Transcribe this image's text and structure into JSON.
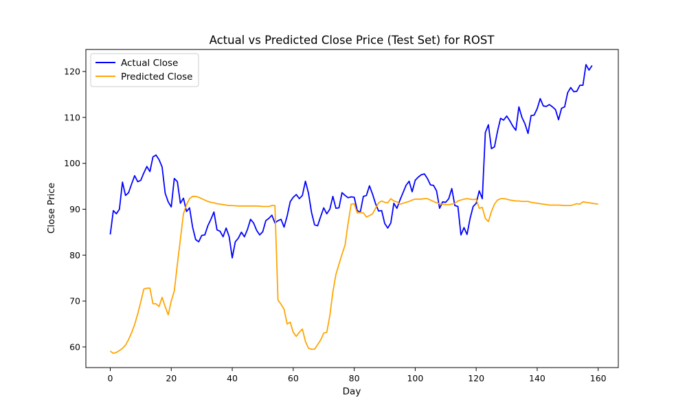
{
  "chart_data": {
    "type": "line",
    "title": "Actual vs Predicted Close Price (Test Set) for ROST",
    "xlabel": "Day",
    "ylabel": "Close Price",
    "xlim": [
      -8,
      166.6
    ],
    "ylim": [
      55.5,
      124.8
    ],
    "xticks": [
      0,
      20,
      40,
      60,
      80,
      100,
      120,
      140,
      160
    ],
    "yticks": [
      60,
      70,
      80,
      90,
      100,
      110,
      120
    ],
    "xtick_labels": [
      "0",
      "20",
      "40",
      "60",
      "80",
      "100",
      "120",
      "140",
      "160"
    ],
    "ytick_labels": [
      "60",
      "70",
      "80",
      "90",
      "100",
      "110",
      "120"
    ],
    "grid": false,
    "legend_position": "upper-left",
    "series": [
      {
        "name": "Actual Close",
        "color": "#0000ff",
        "points": [
          [
            0,
            84.5
          ],
          [
            1,
            89.7
          ],
          [
            2,
            89.0
          ],
          [
            3,
            90.0
          ],
          [
            4,
            95.9
          ],
          [
            5,
            93.0
          ],
          [
            6,
            93.6
          ],
          [
            7,
            95.5
          ],
          [
            8,
            97.3
          ],
          [
            9,
            96.0
          ],
          [
            10,
            96.3
          ],
          [
            11,
            97.9
          ],
          [
            12,
            99.3
          ],
          [
            13,
            98.2
          ],
          [
            14,
            101.4
          ],
          [
            15,
            101.8
          ],
          [
            16,
            100.8
          ],
          [
            17,
            99.2
          ],
          [
            18,
            93.5
          ],
          [
            19,
            91.6
          ],
          [
            20,
            90.5
          ],
          [
            21,
            96.7
          ],
          [
            22,
            96.0
          ],
          [
            23,
            91.3
          ],
          [
            24,
            92.4
          ],
          [
            25,
            89.5
          ],
          [
            26,
            90.3
          ],
          [
            27,
            86.1
          ],
          [
            28,
            83.4
          ],
          [
            29,
            82.9
          ],
          [
            30,
            84.3
          ],
          [
            31,
            84.4
          ],
          [
            32,
            86.4
          ],
          [
            33,
            87.8
          ],
          [
            34,
            89.4
          ],
          [
            35,
            85.5
          ],
          [
            36,
            85.2
          ],
          [
            37,
            84.0
          ],
          [
            38,
            85.9
          ],
          [
            39,
            84.0
          ],
          [
            40,
            79.4
          ],
          [
            41,
            82.9
          ],
          [
            42,
            83.7
          ],
          [
            43,
            85.0
          ],
          [
            44,
            84.0
          ],
          [
            45,
            85.6
          ],
          [
            46,
            87.8
          ],
          [
            47,
            87.0
          ],
          [
            48,
            85.4
          ],
          [
            49,
            84.4
          ],
          [
            50,
            85.1
          ],
          [
            51,
            87.5
          ],
          [
            52,
            88.0
          ],
          [
            53,
            88.7
          ],
          [
            54,
            87.0
          ],
          [
            55,
            87.5
          ],
          [
            56,
            87.8
          ],
          [
            57,
            86.1
          ],
          [
            58,
            88.5
          ],
          [
            59,
            91.6
          ],
          [
            60,
            92.6
          ],
          [
            61,
            93.2
          ],
          [
            62,
            92.3
          ],
          [
            63,
            93.0
          ],
          [
            64,
            96.1
          ],
          [
            65,
            93.5
          ],
          [
            66,
            89.3
          ],
          [
            67,
            86.6
          ],
          [
            68,
            86.4
          ],
          [
            69,
            88.4
          ],
          [
            70,
            90.3
          ],
          [
            71,
            89.0
          ],
          [
            72,
            90.0
          ],
          [
            73,
            92.8
          ],
          [
            74,
            90.2
          ],
          [
            75,
            90.3
          ],
          [
            76,
            93.6
          ],
          [
            77,
            93.0
          ],
          [
            78,
            92.5
          ],
          [
            79,
            92.7
          ],
          [
            80,
            92.6
          ],
          [
            81,
            89.7
          ],
          [
            82,
            89.4
          ],
          [
            83,
            92.8
          ],
          [
            84,
            93.0
          ],
          [
            85,
            95.1
          ],
          [
            86,
            93.3
          ],
          [
            87,
            91.2
          ],
          [
            88,
            89.6
          ],
          [
            89,
            89.7
          ],
          [
            90,
            86.9
          ],
          [
            91,
            85.9
          ],
          [
            92,
            87.0
          ],
          [
            93,
            91.3
          ],
          [
            94,
            90.2
          ],
          [
            95,
            92.0
          ],
          [
            96,
            93.6
          ],
          [
            97,
            95.2
          ],
          [
            98,
            96.1
          ],
          [
            99,
            93.8
          ],
          [
            100,
            96.3
          ],
          [
            101,
            97.0
          ],
          [
            102,
            97.5
          ],
          [
            103,
            97.7
          ],
          [
            104,
            96.7
          ],
          [
            105,
            95.3
          ],
          [
            106,
            95.2
          ],
          [
            107,
            94.0
          ],
          [
            108,
            90.2
          ],
          [
            109,
            91.6
          ],
          [
            110,
            91.5
          ],
          [
            111,
            92.3
          ],
          [
            112,
            94.5
          ],
          [
            113,
            90.8
          ],
          [
            114,
            90.6
          ],
          [
            115,
            84.4
          ],
          [
            116,
            86.0
          ],
          [
            117,
            84.5
          ],
          [
            118,
            88.0
          ],
          [
            119,
            90.6
          ],
          [
            120,
            91.3
          ],
          [
            121,
            94.0
          ],
          [
            122,
            92.3
          ],
          [
            123,
            106.7
          ],
          [
            124,
            108.4
          ],
          [
            125,
            103.2
          ],
          [
            126,
            103.6
          ],
          [
            127,
            107.0
          ],
          [
            128,
            109.8
          ],
          [
            129,
            109.4
          ],
          [
            130,
            110.3
          ],
          [
            131,
            109.3
          ],
          [
            132,
            108.1
          ],
          [
            133,
            107.2
          ],
          [
            134,
            112.3
          ],
          [
            135,
            110.0
          ],
          [
            136,
            108.6
          ],
          [
            137,
            106.5
          ],
          [
            138,
            110.4
          ],
          [
            139,
            110.5
          ],
          [
            140,
            111.9
          ],
          [
            141,
            114.1
          ],
          [
            142,
            112.5
          ],
          [
            143,
            112.4
          ],
          [
            144,
            112.8
          ],
          [
            145,
            112.3
          ],
          [
            146,
            111.7
          ],
          [
            147,
            109.5
          ],
          [
            148,
            112.0
          ],
          [
            149,
            112.3
          ],
          [
            150,
            115.4
          ],
          [
            151,
            116.5
          ],
          [
            152,
            115.6
          ],
          [
            153,
            115.7
          ],
          [
            154,
            117.0
          ],
          [
            155,
            117.0
          ],
          [
            156,
            121.5
          ],
          [
            157,
            120.3
          ],
          [
            158,
            121.3
          ]
        ]
      },
      {
        "name": "Predicted Close",
        "color": "#ffa500",
        "points": [
          [
            0,
            59.1
          ],
          [
            1,
            58.6
          ],
          [
            2,
            58.8
          ],
          [
            3,
            59.2
          ],
          [
            4,
            59.7
          ],
          [
            5,
            60.4
          ],
          [
            6,
            61.6
          ],
          [
            7,
            63.1
          ],
          [
            8,
            64.9
          ],
          [
            9,
            67.2
          ],
          [
            10,
            69.8
          ],
          [
            11,
            72.6
          ],
          [
            12,
            72.8
          ],
          [
            13,
            72.8
          ],
          [
            14,
            69.4
          ],
          [
            15,
            69.4
          ],
          [
            16,
            68.8
          ],
          [
            17,
            70.8
          ],
          [
            18,
            68.8
          ],
          [
            19,
            67.0
          ],
          [
            20,
            70.0
          ],
          [
            21,
            72.2
          ],
          [
            22,
            78.0
          ],
          [
            23,
            83.5
          ],
          [
            24,
            89.0
          ],
          [
            25,
            91.0
          ],
          [
            26,
            92.3
          ],
          [
            27,
            92.8
          ],
          [
            28,
            92.8
          ],
          [
            29,
            92.6
          ],
          [
            30,
            92.3
          ],
          [
            31,
            92.0
          ],
          [
            32,
            91.7
          ],
          [
            33,
            91.5
          ],
          [
            34,
            91.4
          ],
          [
            35,
            91.2
          ],
          [
            36,
            91.1
          ],
          [
            37,
            91.0
          ],
          [
            38,
            90.9
          ],
          [
            39,
            90.8
          ],
          [
            40,
            90.8
          ],
          [
            41,
            90.75
          ],
          [
            42,
            90.7
          ],
          [
            43,
            90.7
          ],
          [
            44,
            90.7
          ],
          [
            45,
            90.7
          ],
          [
            46,
            90.7
          ],
          [
            47,
            90.7
          ],
          [
            48,
            90.7
          ],
          [
            49,
            90.65
          ],
          [
            50,
            90.6
          ],
          [
            51,
            90.6
          ],
          [
            52,
            90.6
          ],
          [
            53,
            90.8
          ],
          [
            54,
            90.8
          ],
          [
            55,
            70.2
          ],
          [
            56,
            69.3
          ],
          [
            57,
            68.2
          ],
          [
            58,
            65.0
          ],
          [
            59,
            65.4
          ],
          [
            60,
            63.2
          ],
          [
            61,
            62.3
          ],
          [
            62,
            63.2
          ],
          [
            63,
            63.9
          ],
          [
            64,
            61.2
          ],
          [
            65,
            59.7
          ],
          [
            66,
            59.5
          ],
          [
            67,
            59.5
          ],
          [
            68,
            60.5
          ],
          [
            69,
            61.5
          ],
          [
            70,
            63.0
          ],
          [
            71,
            63.2
          ],
          [
            72,
            66.8
          ],
          [
            73,
            72.0
          ],
          [
            74,
            75.8
          ],
          [
            75,
            78.0
          ],
          [
            76,
            80.2
          ],
          [
            77,
            82.2
          ],
          [
            78,
            87.0
          ],
          [
            79,
            91.1
          ],
          [
            80,
            91.2
          ],
          [
            81,
            89.2
          ],
          [
            82,
            89.3
          ],
          [
            83,
            89.2
          ],
          [
            84,
            88.3
          ],
          [
            85,
            88.6
          ],
          [
            86,
            89.0
          ],
          [
            87,
            90.2
          ],
          [
            88,
            91.4
          ],
          [
            89,
            91.8
          ],
          [
            90,
            91.5
          ],
          [
            91,
            91.4
          ],
          [
            92,
            92.3
          ],
          [
            93,
            91.8
          ],
          [
            94,
            91.6
          ],
          [
            95,
            91.1
          ],
          [
            96,
            91.3
          ],
          [
            97,
            91.5
          ],
          [
            98,
            91.7
          ],
          [
            99,
            92.0
          ],
          [
            100,
            92.2
          ],
          [
            101,
            92.2
          ],
          [
            102,
            92.2
          ],
          [
            103,
            92.3
          ],
          [
            104,
            92.3
          ],
          [
            105,
            92.0
          ],
          [
            106,
            91.7
          ],
          [
            107,
            91.4
          ],
          [
            108,
            91.2
          ],
          [
            109,
            91.1
          ],
          [
            110,
            91.0
          ],
          [
            111,
            91.0
          ],
          [
            112,
            91.1
          ],
          [
            113,
            91.3
          ],
          [
            114,
            91.8
          ],
          [
            115,
            92.0
          ],
          [
            116,
            92.2
          ],
          [
            117,
            92.3
          ],
          [
            118,
            92.2
          ],
          [
            119,
            92.1
          ],
          [
            120,
            92.2
          ],
          [
            121,
            90.2
          ],
          [
            122,
            90.4
          ],
          [
            123,
            88.0
          ],
          [
            124,
            87.3
          ],
          [
            125,
            89.5
          ],
          [
            126,
            91.1
          ],
          [
            127,
            92.0
          ],
          [
            128,
            92.3
          ],
          [
            129,
            92.3
          ],
          [
            130,
            92.2
          ],
          [
            131,
            92.0
          ],
          [
            132,
            91.9
          ],
          [
            133,
            91.8
          ],
          [
            134,
            91.8
          ],
          [
            135,
            91.7
          ],
          [
            136,
            91.7
          ],
          [
            137,
            91.7
          ],
          [
            138,
            91.5
          ],
          [
            139,
            91.4
          ],
          [
            140,
            91.3
          ],
          [
            141,
            91.2
          ],
          [
            142,
            91.1
          ],
          [
            143,
            91.0
          ],
          [
            144,
            90.9
          ],
          [
            145,
            90.9
          ],
          [
            146,
            90.9
          ],
          [
            147,
            90.9
          ],
          [
            148,
            90.85
          ],
          [
            149,
            90.8
          ],
          [
            150,
            90.8
          ],
          [
            151,
            90.8
          ],
          [
            152,
            91.0
          ],
          [
            153,
            91.2
          ],
          [
            154,
            91.1
          ],
          [
            155,
            91.6
          ],
          [
            156,
            91.5
          ],
          [
            157,
            91.4
          ],
          [
            158,
            91.3
          ],
          [
            159,
            91.2
          ],
          [
            160,
            91.1
          ]
        ]
      }
    ]
  }
}
